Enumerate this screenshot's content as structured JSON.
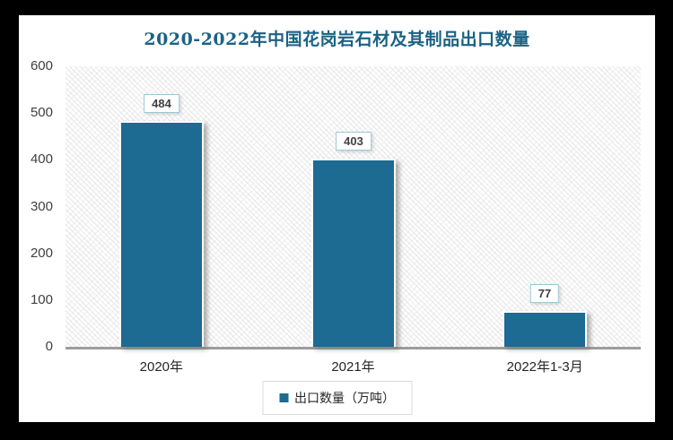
{
  "chart_data": {
    "type": "bar",
    "title": "2020-2022年中国花岗岩石材及其制品出口数量",
    "categories": [
      "2020年",
      "2021年",
      "2022年1-3月"
    ],
    "values": [
      484,
      403,
      77
    ],
    "data_labels": [
      "484",
      "403",
      "77"
    ],
    "yticks": [
      0,
      100,
      200,
      300,
      400,
      500,
      600
    ],
    "ylim": [
      0,
      600
    ],
    "xlabel": "",
    "ylabel": "",
    "grid": false,
    "legend": "出口数量（万吨）",
    "legend_position": "bottom",
    "colors": {
      "bar": "#1d6a92",
      "title": "#1b6285",
      "value_label_text": "#404040",
      "value_label_border": "#9ec6d8",
      "axis_line": "#9d9d9d",
      "tick_text": "#404040",
      "frame": "#000000"
    }
  }
}
